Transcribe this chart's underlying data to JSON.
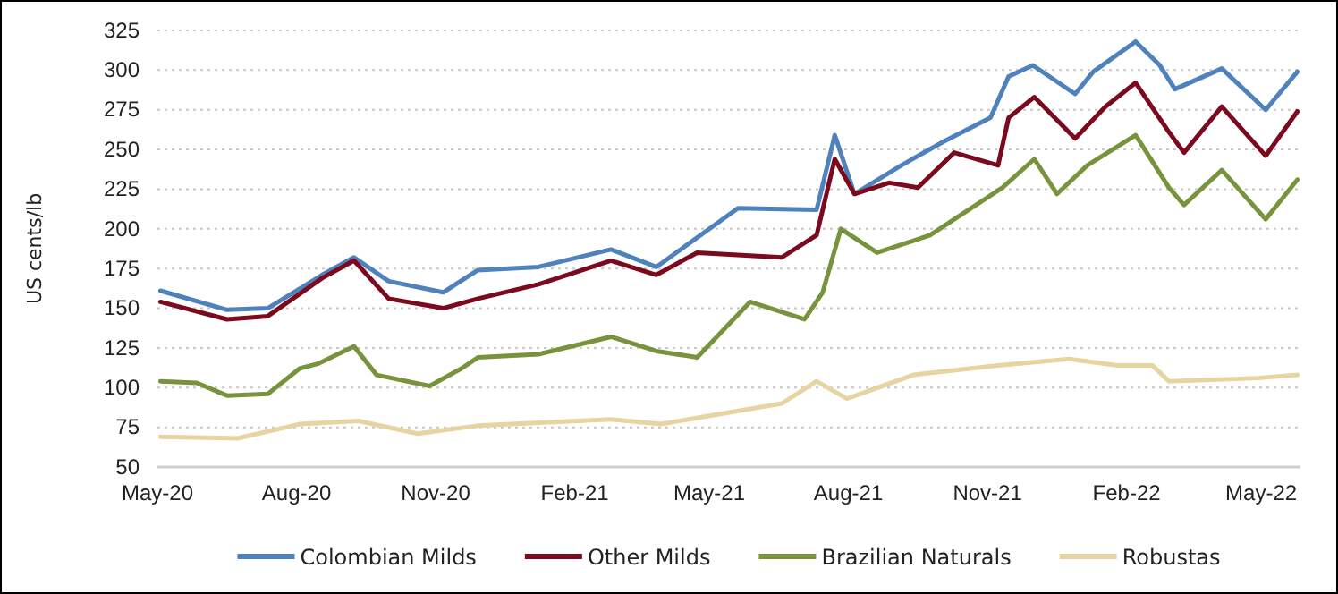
{
  "chart_data": {
    "type": "line",
    "ylabel": "US cents/lb",
    "xlim": [
      "2020-05-01",
      "2022-05-27"
    ],
    "xticks": [
      {
        "value": "2020-05-01",
        "label": "May-20"
      },
      {
        "value": "2020-08-01",
        "label": "Aug-20"
      },
      {
        "value": "2020-11-01",
        "label": "Nov-20"
      },
      {
        "value": "2021-02-01",
        "label": "Feb-21"
      },
      {
        "value": "2021-05-01",
        "label": "May-21"
      },
      {
        "value": "2021-08-01",
        "label": "Aug-21"
      },
      {
        "value": "2021-11-01",
        "label": "Nov-21"
      },
      {
        "value": "2022-02-01",
        "label": "Feb-22"
      },
      {
        "value": "2022-05-01",
        "label": "May-22"
      }
    ],
    "ylim": [
      50,
      325
    ],
    "yticks": [
      50,
      75,
      100,
      125,
      150,
      175,
      200,
      225,
      250,
      275,
      300,
      325
    ],
    "grid": "y",
    "legend": "bottom",
    "marker": "none",
    "line_style": "solid",
    "series": [
      {
        "name": "Colombian Milds",
        "color": "#4f81bd",
        "x": [
          "2020-05-03",
          "2020-06-16",
          "2020-07-13",
          "2020-08-18",
          "2020-09-08",
          "2020-10-01",
          "2020-11-06",
          "2020-11-29",
          "2021-01-08",
          "2021-02-25",
          "2021-03-27",
          "2021-05-20",
          "2021-07-11",
          "2021-07-23",
          "2021-08-05",
          "2021-09-05",
          "2021-10-03",
          "2021-11-03",
          "2021-11-15",
          "2021-12-01",
          "2021-12-29",
          "2022-01-10",
          "2022-02-07",
          "2022-02-23",
          "2022-03-05",
          "2022-04-05",
          "2022-05-04",
          "2022-05-25"
        ],
        "values": [
          161,
          149,
          150,
          171,
          182,
          167,
          160,
          174,
          176,
          187,
          176,
          213,
          212,
          259,
          222,
          240,
          255,
          270,
          296,
          303,
          285,
          299,
          318,
          303,
          288,
          301,
          275,
          299
        ]
      },
      {
        "name": "Other Milds",
        "color": "#7b0a1e",
        "x": [
          "2020-05-03",
          "2020-06-16",
          "2020-07-13",
          "2020-08-18",
          "2020-09-08",
          "2020-10-01",
          "2020-11-06",
          "2020-11-29",
          "2021-01-08",
          "2021-02-25",
          "2021-03-27",
          "2021-04-23",
          "2021-06-18",
          "2021-07-11",
          "2021-07-23",
          "2021-08-05",
          "2021-08-28",
          "2021-09-16",
          "2021-10-10",
          "2021-11-08",
          "2021-11-15",
          "2021-12-02",
          "2021-12-29",
          "2022-01-18",
          "2022-02-07",
          "2022-03-01",
          "2022-03-11",
          "2022-04-05",
          "2022-05-04",
          "2022-05-25"
        ],
        "values": [
          154,
          143,
          145,
          169,
          180,
          156,
          150,
          156,
          165,
          180,
          171,
          185,
          182,
          196,
          244,
          222,
          229,
          226,
          248,
          240,
          270,
          283,
          257,
          277,
          292,
          261,
          248,
          277,
          246,
          274
        ]
      },
      {
        "name": "Brazilian Naturals",
        "color": "#77933c",
        "x": [
          "2020-05-03",
          "2020-05-27",
          "2020-06-16",
          "2020-07-13",
          "2020-08-03",
          "2020-08-15",
          "2020-09-08",
          "2020-09-23",
          "2020-10-28",
          "2020-11-18",
          "2020-11-29",
          "2021-01-08",
          "2021-02-25",
          "2021-03-27",
          "2021-04-23",
          "2021-05-28",
          "2021-07-03",
          "2021-07-15",
          "2021-07-27",
          "2021-08-20",
          "2021-09-24",
          "2021-11-11",
          "2021-12-02",
          "2021-12-17",
          "2022-01-06",
          "2022-02-07",
          "2022-03-01",
          "2022-03-11",
          "2022-04-05",
          "2022-05-04",
          "2022-05-25"
        ],
        "values": [
          104,
          103,
          95,
          96,
          112,
          115,
          126,
          108,
          101,
          112,
          119,
          121,
          132,
          123,
          119,
          154,
          143,
          160,
          200,
          185,
          196,
          226,
          244,
          222,
          240,
          259,
          226,
          215,
          237,
          206,
          231
        ]
      },
      {
        "name": "Robustas",
        "color": "#e8d3a2",
        "x": [
          "2020-05-03",
          "2020-06-23",
          "2020-08-03",
          "2020-09-11",
          "2020-10-20",
          "2020-11-29",
          "2021-02-25",
          "2021-03-30",
          "2021-06-18",
          "2021-07-11",
          "2021-07-31",
          "2021-09-13",
          "2021-11-08",
          "2021-12-25",
          "2022-01-26",
          "2022-02-18",
          "2022-03-01",
          "2022-04-29",
          "2022-05-25"
        ],
        "values": [
          69,
          68,
          77,
          79,
          71,
          76,
          80,
          77,
          90,
          104,
          93,
          108,
          114,
          118,
          114,
          114,
          104,
          106,
          108
        ]
      }
    ]
  }
}
